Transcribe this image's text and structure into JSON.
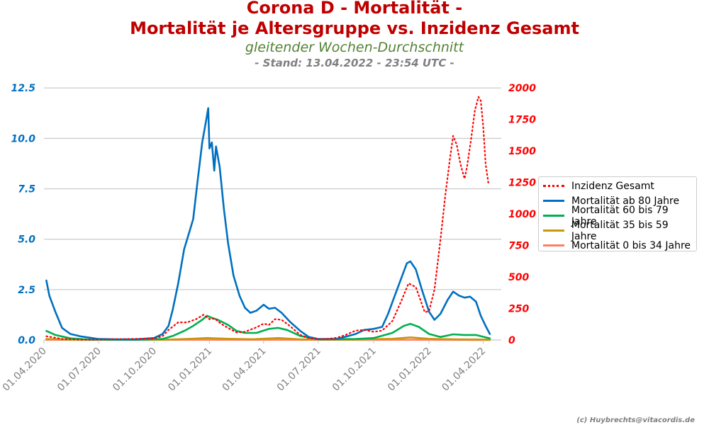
{
  "title_line1": "Corona D - Mortalität -",
  "title_line2": "Mortalität je Altersgruppe vs. Inzidenz Gesamt",
  "subtitle": "gleitender Wochen-Durchschnitt",
  "stand": "- Stand: 13.04.2022 - 23:54 UTC -",
  "copyright": "(c) Huybrechts@vitacordis.de",
  "chart_data": {
    "type": "line",
    "x_type": "date",
    "x_ticks": [
      "01.04.2020",
      "01.07.2020",
      "01.10.2020",
      "01.01.2021",
      "01.04.2021",
      "01.07.2021",
      "01.10.2021",
      "01.01.2022",
      "01.04.2022"
    ],
    "xlim": [
      "2020-04-01",
      "2022-05-01"
    ],
    "y_left": {
      "lim": [
        0,
        13.0
      ],
      "ticks": [
        "0.0",
        "2.5",
        "5.0",
        "7.5",
        "10.0",
        "12.5"
      ],
      "color": "#0070c0"
    },
    "y_right": {
      "lim": [
        0,
        2080
      ],
      "ticks": [
        "0",
        "250",
        "500",
        "750",
        "1000",
        "1250",
        "1500",
        "1750",
        "2000"
      ],
      "color": "#ff0000"
    },
    "grid": "horizontal",
    "legend_position": "right",
    "series": [
      {
        "name": "Inzidenz Gesamt",
        "axis": "right",
        "color": "#ff0000",
        "style": "dotted",
        "points": [
          [
            "2020-04-05",
            30
          ],
          [
            "2020-04-15",
            22
          ],
          [
            "2020-05-01",
            8
          ],
          [
            "2020-06-01",
            3
          ],
          [
            "2020-07-01",
            3
          ],
          [
            "2020-08-01",
            6
          ],
          [
            "2020-09-01",
            9
          ],
          [
            "2020-10-01",
            13
          ],
          [
            "2020-10-15",
            30
          ],
          [
            "2020-10-25",
            80
          ],
          [
            "2020-11-10",
            140
          ],
          [
            "2020-11-25",
            140
          ],
          [
            "2020-12-10",
            165
          ],
          [
            "2020-12-22",
            200
          ],
          [
            "2021-01-01",
            165
          ],
          [
            "2021-01-10",
            170
          ],
          [
            "2021-01-20",
            130
          ],
          [
            "2021-02-01",
            95
          ],
          [
            "2021-02-15",
            60
          ],
          [
            "2021-03-01",
            65
          ],
          [
            "2021-03-20",
            100
          ],
          [
            "2021-04-01",
            130
          ],
          [
            "2021-04-10",
            120
          ],
          [
            "2021-04-20",
            165
          ],
          [
            "2021-05-01",
            160
          ],
          [
            "2021-05-15",
            110
          ],
          [
            "2021-06-01",
            40
          ],
          [
            "2021-06-15",
            15
          ],
          [
            "2021-07-01",
            6
          ],
          [
            "2021-07-15",
            8
          ],
          [
            "2021-08-01",
            18
          ],
          [
            "2021-08-15",
            40
          ],
          [
            "2021-09-01",
            75
          ],
          [
            "2021-09-15",
            80
          ],
          [
            "2021-10-01",
            65
          ],
          [
            "2021-10-15",
            75
          ],
          [
            "2021-11-01",
            150
          ],
          [
            "2021-11-15",
            300
          ],
          [
            "2021-11-28",
            450
          ],
          [
            "2021-12-10",
            420
          ],
          [
            "2021-12-25",
            220
          ],
          [
            "2022-01-01",
            230
          ],
          [
            "2022-01-10",
            400
          ],
          [
            "2022-01-20",
            800
          ],
          [
            "2022-01-28",
            1150
          ],
          [
            "2022-02-05",
            1450
          ],
          [
            "2022-02-10",
            1620
          ],
          [
            "2022-02-16",
            1550
          ],
          [
            "2022-02-22",
            1400
          ],
          [
            "2022-03-01",
            1280
          ],
          [
            "2022-03-05",
            1370
          ],
          [
            "2022-03-12",
            1600
          ],
          [
            "2022-03-18",
            1820
          ],
          [
            "2022-03-24",
            1930
          ],
          [
            "2022-03-28",
            1900
          ],
          [
            "2022-04-01",
            1700
          ],
          [
            "2022-04-05",
            1400
          ],
          [
            "2022-04-10",
            1230
          ]
        ]
      },
      {
        "name": "Mortalität ab 80 Jahre",
        "axis": "left",
        "color": "#0070c0",
        "style": "solid",
        "points": [
          [
            "2020-04-05",
            2.95
          ],
          [
            "2020-04-10",
            2.2
          ],
          [
            "2020-04-20",
            1.4
          ],
          [
            "2020-05-01",
            0.6
          ],
          [
            "2020-05-15",
            0.3
          ],
          [
            "2020-06-01",
            0.18
          ],
          [
            "2020-07-01",
            0.05
          ],
          [
            "2020-08-01",
            0.03
          ],
          [
            "2020-09-01",
            0.03
          ],
          [
            "2020-10-01",
            0.1
          ],
          [
            "2020-10-15",
            0.3
          ],
          [
            "2020-10-25",
            0.7
          ],
          [
            "2020-11-01",
            1.5
          ],
          [
            "2020-11-10",
            2.8
          ],
          [
            "2020-11-20",
            4.5
          ],
          [
            "2020-11-27",
            5.2
          ],
          [
            "2020-12-05",
            6.0
          ],
          [
            "2020-12-12",
            7.8
          ],
          [
            "2020-12-20",
            9.8
          ],
          [
            "2020-12-26",
            10.8
          ],
          [
            "2020-12-30",
            11.5
          ],
          [
            "2021-01-01",
            9.5
          ],
          [
            "2021-01-05",
            9.8
          ],
          [
            "2021-01-09",
            8.4
          ],
          [
            "2021-01-12",
            9.6
          ],
          [
            "2021-01-18",
            8.6
          ],
          [
            "2021-01-25",
            6.5
          ],
          [
            "2021-02-01",
            4.8
          ],
          [
            "2021-02-10",
            3.2
          ],
          [
            "2021-02-20",
            2.2
          ],
          [
            "2021-03-01",
            1.6
          ],
          [
            "2021-03-10",
            1.35
          ],
          [
            "2021-03-20",
            1.45
          ],
          [
            "2021-04-01",
            1.75
          ],
          [
            "2021-04-10",
            1.55
          ],
          [
            "2021-04-20",
            1.6
          ],
          [
            "2021-05-01",
            1.35
          ],
          [
            "2021-05-15",
            0.9
          ],
          [
            "2021-06-01",
            0.45
          ],
          [
            "2021-06-15",
            0.15
          ],
          [
            "2021-07-01",
            0.05
          ],
          [
            "2021-08-01",
            0.05
          ],
          [
            "2021-09-01",
            0.3
          ],
          [
            "2021-09-15",
            0.5
          ],
          [
            "2021-10-01",
            0.55
          ],
          [
            "2021-10-15",
            0.65
          ],
          [
            "2021-10-25",
            1.3
          ],
          [
            "2021-11-05",
            2.2
          ],
          [
            "2021-11-15",
            3.0
          ],
          [
            "2021-11-25",
            3.8
          ],
          [
            "2021-12-01",
            3.9
          ],
          [
            "2021-12-10",
            3.5
          ],
          [
            "2021-12-20",
            2.5
          ],
          [
            "2022-01-01",
            1.4
          ],
          [
            "2022-01-10",
            1.0
          ],
          [
            "2022-01-20",
            1.3
          ],
          [
            "2022-02-01",
            2.0
          ],
          [
            "2022-02-10",
            2.4
          ],
          [
            "2022-02-20",
            2.2
          ],
          [
            "2022-03-01",
            2.1
          ],
          [
            "2022-03-10",
            2.15
          ],
          [
            "2022-03-20",
            1.9
          ],
          [
            "2022-03-28",
            1.2
          ],
          [
            "2022-04-05",
            0.7
          ],
          [
            "2022-04-12",
            0.3
          ]
        ]
      },
      {
        "name": "Mortalität 60 bis 79 Jahre",
        "axis": "left",
        "color": "#00b050",
        "style": "solid",
        "points": [
          [
            "2020-04-05",
            0.45
          ],
          [
            "2020-04-20",
            0.25
          ],
          [
            "2020-05-15",
            0.08
          ],
          [
            "2020-06-15",
            0.02
          ],
          [
            "2020-09-01",
            0.01
          ],
          [
            "2020-10-15",
            0.05
          ],
          [
            "2020-11-01",
            0.2
          ],
          [
            "2020-11-20",
            0.45
          ],
          [
            "2020-12-05",
            0.7
          ],
          [
            "2020-12-20",
            1.0
          ],
          [
            "2020-12-28",
            1.2
          ],
          [
            "2021-01-05",
            1.1
          ],
          [
            "2021-01-15",
            1.0
          ],
          [
            "2021-02-01",
            0.75
          ],
          [
            "2021-02-15",
            0.45
          ],
          [
            "2021-03-01",
            0.35
          ],
          [
            "2021-03-20",
            0.35
          ],
          [
            "2021-04-10",
            0.55
          ],
          [
            "2021-04-25",
            0.6
          ],
          [
            "2021-05-10",
            0.5
          ],
          [
            "2021-06-01",
            0.2
          ],
          [
            "2021-07-01",
            0.03
          ],
          [
            "2021-09-01",
            0.05
          ],
          [
            "2021-10-01",
            0.1
          ],
          [
            "2021-11-01",
            0.35
          ],
          [
            "2021-11-20",
            0.7
          ],
          [
            "2021-12-01",
            0.8
          ],
          [
            "2021-12-15",
            0.65
          ],
          [
            "2022-01-01",
            0.3
          ],
          [
            "2022-01-20",
            0.15
          ],
          [
            "2022-02-10",
            0.28
          ],
          [
            "2022-03-01",
            0.25
          ],
          [
            "2022-03-20",
            0.25
          ],
          [
            "2022-04-12",
            0.08
          ]
        ]
      },
      {
        "name": "Mortalität 35 bis 59 Jahre",
        "axis": "left",
        "color": "#c9960c",
        "style": "solid",
        "points": [
          [
            "2020-04-05",
            0.05
          ],
          [
            "2020-06-01",
            0.01
          ],
          [
            "2020-10-15",
            0.01
          ],
          [
            "2020-12-01",
            0.06
          ],
          [
            "2020-12-28",
            0.1
          ],
          [
            "2021-02-01",
            0.06
          ],
          [
            "2021-03-15",
            0.04
          ],
          [
            "2021-04-25",
            0.1
          ],
          [
            "2021-06-01",
            0.03
          ],
          [
            "2021-08-01",
            0.01
          ],
          [
            "2021-11-01",
            0.06
          ],
          [
            "2021-12-01",
            0.13
          ],
          [
            "2022-01-01",
            0.06
          ],
          [
            "2022-02-15",
            0.03
          ],
          [
            "2022-04-12",
            0.02
          ]
        ]
      },
      {
        "name": "Mortalität 0 bis 34 Jahre",
        "axis": "left",
        "color": "#ff7f66",
        "style": "solid",
        "points": [
          [
            "2020-04-05",
            0.01
          ],
          [
            "2020-12-28",
            0.01
          ],
          [
            "2021-12-01",
            0.01
          ],
          [
            "2022-04-12",
            0.005
          ]
        ]
      }
    ]
  }
}
